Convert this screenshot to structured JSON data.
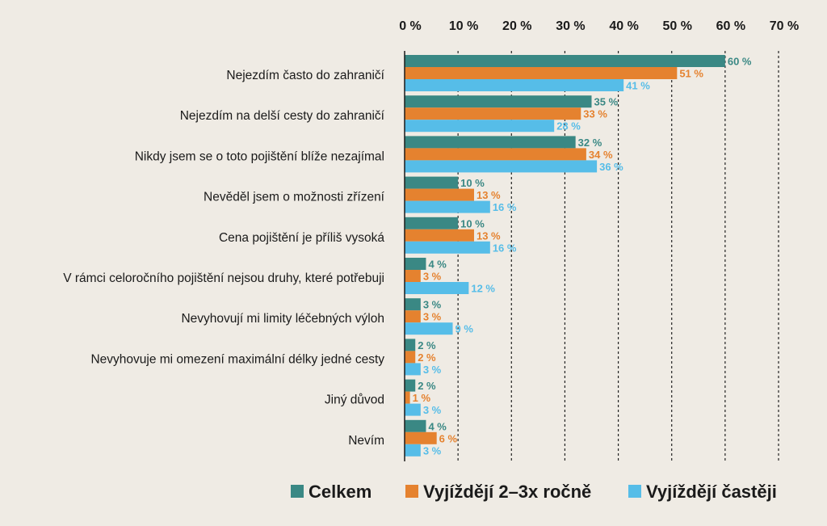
{
  "chart_data": {
    "type": "bar",
    "orientation": "horizontal",
    "title": "",
    "xlabel": "",
    "ylabel": "",
    "xlim": [
      0,
      70
    ],
    "x_ticks": [
      "0 %",
      "10 %",
      "20 %",
      "30 %",
      "40 %",
      "50 %",
      "60 %",
      "70 %"
    ],
    "grid": "vertical dashed",
    "legend_position": "bottom",
    "categories": [
      "Nejezdím často do zahraničí",
      "Nejezdím na delší cesty do zahraničí",
      "Nikdy jsem se o toto pojištění blíže nezajímal",
      "Nevěděl jsem o možnosti zřízení",
      "Cena pojištění je příliš vysoká",
      "V rámci celoročního pojištění nejsou druhy, které potřebuji",
      "Nevyhovují mi limity léčebných výloh",
      "Nevyhovuje mi omezení maximální délky jedné cesty",
      "Jiný důvod",
      "Nevím"
    ],
    "series": [
      {
        "name": "Celkem",
        "color": "#3a8884",
        "values": [
          60,
          35,
          32,
          10,
          10,
          4,
          3,
          2,
          2,
          4
        ],
        "labels": [
          "60 %",
          "35 %",
          "32 %",
          "10 %",
          "10 %",
          "4 %",
          "3 %",
          "2 %",
          "2 %",
          "4 %"
        ]
      },
      {
        "name": "Vyjíždějí 2–3x ročně",
        "color": "#e5822f",
        "values": [
          51,
          33,
          34,
          13,
          13,
          3,
          3,
          2,
          1,
          6
        ],
        "labels": [
          "51 %",
          "33 %",
          "34 %",
          "13 %",
          "13 %",
          "3 %",
          "3 %",
          "2 %",
          "1 %",
          "6 %"
        ]
      },
      {
        "name": "Vyjíždějí častěji",
        "color": "#56bde8",
        "values": [
          41,
          28,
          36,
          16,
          16,
          12,
          9,
          3,
          3,
          3
        ],
        "labels": [
          "41 %",
          "28 %",
          "36 %",
          "16 %",
          "16 %",
          "12 %",
          "9 %",
          "3 %",
          "3 %",
          "3 %"
        ]
      }
    ]
  }
}
